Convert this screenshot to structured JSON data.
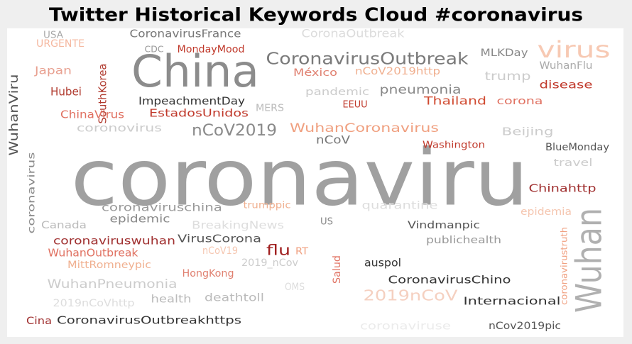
{
  "title": "Twitter Historical Keywords Cloud #coronavirus",
  "words": [
    {
      "text": "coronaviru",
      "color": "#a0a0a0"
    },
    {
      "text": "China",
      "color": "#8c8c8c"
    },
    {
      "text": "Wuhan",
      "color": "#b0b0b0"
    },
    {
      "text": "CoronavirusOutbreak",
      "color": "#7a7a7a"
    },
    {
      "text": "virus",
      "color": "#f7c9b3"
    },
    {
      "text": "nCoV2019",
      "color": "#8a8a8a"
    },
    {
      "text": "WuhanViru",
      "color": "#555555"
    },
    {
      "text": "coronavirus",
      "color": "#8a8a8a"
    },
    {
      "text": "CoronavirusFrance",
      "color": "#777777"
    },
    {
      "text": "CoronaOutbreak",
      "color": "#dcdcdc"
    },
    {
      "text": "MondayMood",
      "color": "#c0392b"
    },
    {
      "text": "CDC",
      "color": "#999999"
    },
    {
      "text": "URGENTE",
      "color": "#f5b8a0"
    },
    {
      "text": "USA",
      "color": "#aaaaaa"
    },
    {
      "text": "Japan",
      "color": "#e8a090"
    },
    {
      "text": "Hubei",
      "color": "#b03a2e"
    },
    {
      "text": "SouthKorea",
      "color": "#b03a2e"
    },
    {
      "text": "ChinaVirus",
      "color": "#e07060"
    },
    {
      "text": "ImpeachmentDay",
      "color": "#333333"
    },
    {
      "text": "EstadosUnidos",
      "color": "#c0392b"
    },
    {
      "text": "México",
      "color": "#e08070"
    },
    {
      "text": "nCoV2019http",
      "color": "#f0b090"
    },
    {
      "text": "MLKDay",
      "color": "#888888"
    },
    {
      "text": "WuhanFlu",
      "color": "#aaaaaa"
    },
    {
      "text": "trump",
      "color": "#cccccc"
    },
    {
      "text": "pneumonia",
      "color": "#888888"
    },
    {
      "text": "disease",
      "color": "#c0392b"
    },
    {
      "text": "pandemic",
      "color": "#cccccc"
    },
    {
      "text": "Thailand",
      "color": "#d04a30"
    },
    {
      "text": "corona",
      "color": "#e07060"
    },
    {
      "text": "MERS",
      "color": "#bbbbbb"
    },
    {
      "text": "EEUU",
      "color": "#c0392b"
    },
    {
      "text": "WuhanCoronavirus",
      "color": "#f0a080"
    },
    {
      "text": "coronovirus",
      "color": "#cccccc"
    },
    {
      "text": "nCoV",
      "color": "#777777"
    },
    {
      "text": "Beijing",
      "color": "#cccccc"
    },
    {
      "text": "BlueMonday",
      "color": "#555555"
    },
    {
      "text": "Washington",
      "color": "#c0392b"
    },
    {
      "text": "travel",
      "color": "#cccccc"
    },
    {
      "text": "Chinahttp",
      "color": "#a03030"
    },
    {
      "text": "coronaviruschina",
      "color": "#999999"
    },
    {
      "text": "trumppic",
      "color": "#f0b090"
    },
    {
      "text": "quarantine",
      "color": "#dddddd"
    },
    {
      "text": "epidemic",
      "color": "#888888"
    },
    {
      "text": "Canada",
      "color": "#bbbbbb"
    },
    {
      "text": "BreakingNews",
      "color": "#dddddd"
    },
    {
      "text": "US",
      "color": "#888888"
    },
    {
      "text": "Vindmanpic",
      "color": "#555555"
    },
    {
      "text": "epidemia",
      "color": "#f5c6b0"
    },
    {
      "text": "coronaviruswuhan",
      "color": "#a03030"
    },
    {
      "text": "VirusCorona",
      "color": "#555555"
    },
    {
      "text": "publichealth",
      "color": "#999999"
    },
    {
      "text": "WuhanOutbreak",
      "color": "#e07060"
    },
    {
      "text": "flu",
      "color": "#a02020"
    },
    {
      "text": "RT",
      "color": "#f0a080"
    },
    {
      "text": "nCoV19",
      "color": "#f5c6b0"
    },
    {
      "text": "auspol",
      "color": "#333333"
    },
    {
      "text": "MittRomneypic",
      "color": "#f0b090"
    },
    {
      "text": "HongKong",
      "color": "#e08070"
    },
    {
      "text": "2019_nCov",
      "color": "#cccccc"
    },
    {
      "text": "Salud",
      "color": "#e07060"
    },
    {
      "text": "CoronavirusChino",
      "color": "#333333"
    },
    {
      "text": "WuhanPneumonia",
      "color": "#cccccc"
    },
    {
      "text": "health",
      "color": "#bbbbbb"
    },
    {
      "text": "deathtoll",
      "color": "#bbbbbb"
    },
    {
      "text": "OMS",
      "color": "#dddddd"
    },
    {
      "text": "2019nCoV",
      "color": "#f5d0c0"
    },
    {
      "text": "Internacional",
      "color": "#333333"
    },
    {
      "text": "2019nCoVhttp",
      "color": "#dddddd"
    },
    {
      "text": "Cina",
      "color": "#a03030"
    },
    {
      "text": "CoronavirusOutbreakhttps",
      "color": "#333333"
    },
    {
      "text": "coronaviruse",
      "color": "#ebebeb"
    },
    {
      "text": "nCov2019pic",
      "color": "#555555"
    },
    {
      "text": "coronavirustruth",
      "color": "#f0a080"
    }
  ]
}
